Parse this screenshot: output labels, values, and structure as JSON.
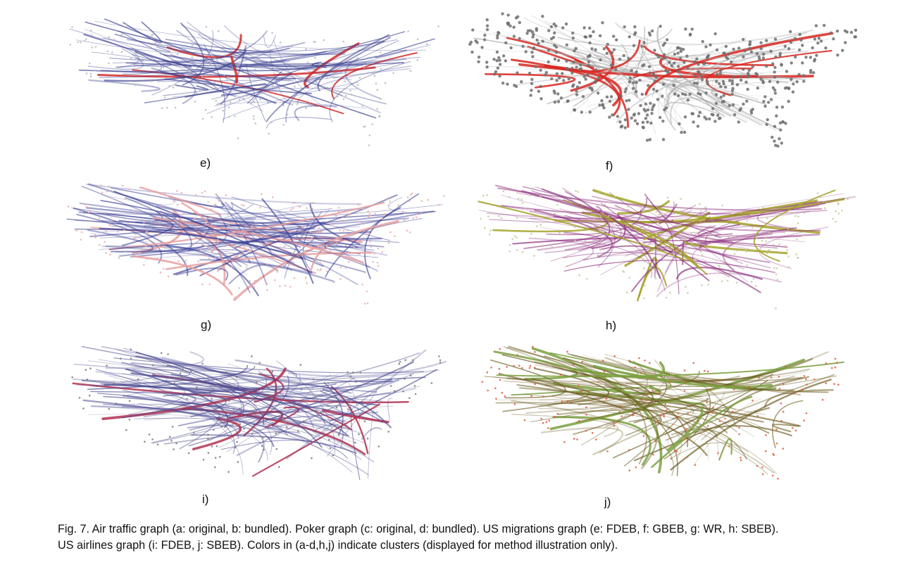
{
  "figure": {
    "panels": [
      {
        "id": "e",
        "label": "e)",
        "edge_color": "#3a3f8f",
        "highlight_color": "#d42a2a",
        "node_color": "#b8b8c0"
      },
      {
        "id": "f",
        "label": "f)",
        "edge_color": "#a9a9a9",
        "highlight_color": "#d8241e",
        "node_color": "#6e6e6e"
      },
      {
        "id": "g",
        "label": "g)",
        "edge_color": "#3b3f95",
        "highlight_color": "#e8a0a0",
        "node_color": "#e8b0b0"
      },
      {
        "id": "h",
        "label": "h)",
        "edge_color": "#8a2a7a",
        "highlight_color": "#a5a32a",
        "node_color": "#c8c8a0"
      },
      {
        "id": "i",
        "label": "i)",
        "edge_color": "#4a4a90",
        "highlight_color": "#b03050",
        "node_color": "#7a7a7a"
      },
      {
        "id": "j",
        "label": "j)",
        "edge_color": "#6b5a1e",
        "highlight_color": "#7aa040",
        "node_color": "#e05a40"
      }
    ],
    "caption_lines": [
      "Fig. 7. Air traffic graph (a: original, b: bundled). Poker graph (c: original, d: bundled). US migrations graph (e: FDEB, f: GBEB, g: WR, h: SBEB).",
      "US airlines graph (i: FDEB, j: SBEB). Colors in (a-d,h,j) indicate clusters (displayed for method illustration only)."
    ]
  }
}
